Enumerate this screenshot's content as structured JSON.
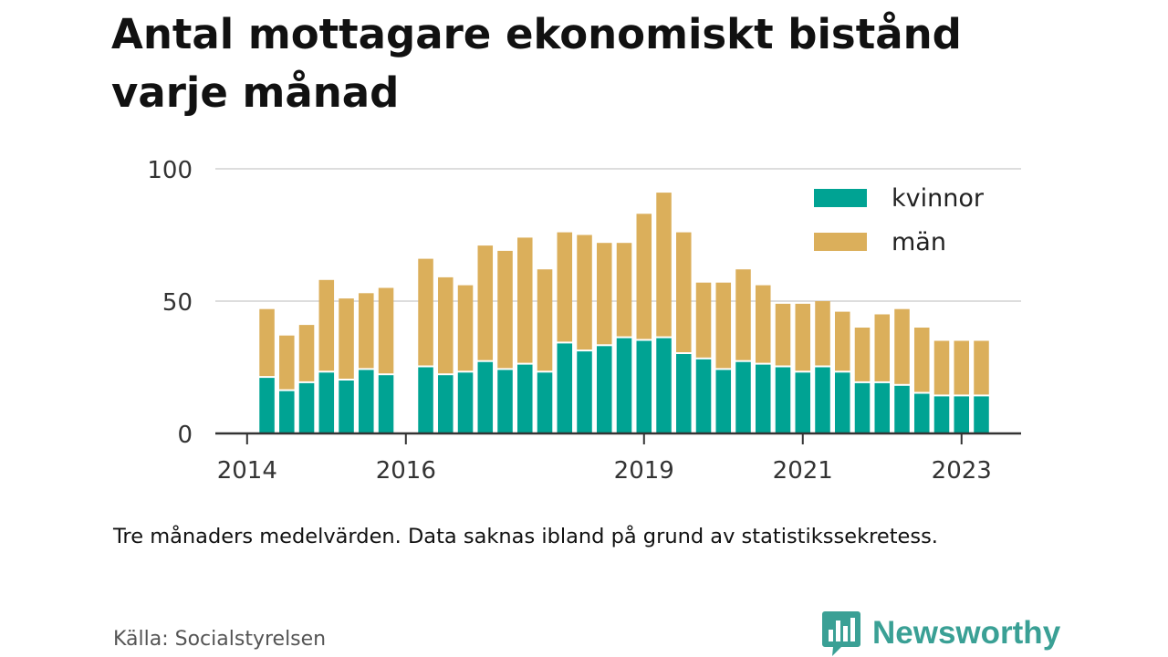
{
  "title": "Antal mottagare ekonomiskt bistånd varje månad",
  "caption": "Tre månaders medelvärden. Data saknas ibland på grund av statistikssekretess.",
  "source": "Källa: Socialstyrelsen",
  "brand": {
    "name": "Newsworthy",
    "icon": "newsworthy-logo-icon"
  },
  "colors": {
    "kvinnor": "#00a393",
    "man": "#dbaf5b",
    "grid": "#dddddd",
    "axis": "#333333"
  },
  "chart_data": {
    "type": "bar",
    "stacked": true,
    "x_unit": "year (quarterly bars)",
    "x": [
      2014.25,
      2014.5,
      2014.75,
      2015.0,
      2015.25,
      2015.5,
      2015.75,
      2016.25,
      2016.5,
      2016.75,
      2017.0,
      2017.25,
      2017.5,
      2017.75,
      2018.0,
      2018.25,
      2018.5,
      2018.75,
      2019.0,
      2019.25,
      2019.5,
      2019.75,
      2020.0,
      2020.25,
      2020.5,
      2020.75,
      2021.0,
      2021.25,
      2021.5,
      2021.75,
      2022.0,
      2022.25,
      2022.5,
      2022.75,
      2023.0,
      2023.25
    ],
    "series": [
      {
        "name": "kvinnor",
        "values": [
          21,
          16,
          19,
          23,
          20,
          24,
          22,
          25,
          22,
          23,
          27,
          24,
          26,
          23,
          34,
          31,
          33,
          36,
          35,
          36,
          30,
          28,
          24,
          27,
          26,
          25,
          23,
          25,
          23,
          19,
          19,
          18,
          15,
          14,
          14,
          14
        ]
      },
      {
        "name": "män",
        "values": [
          26,
          21,
          22,
          35,
          31,
          29,
          33,
          41,
          37,
          33,
          44,
          45,
          48,
          39,
          42,
          44,
          39,
          36,
          48,
          55,
          46,
          29,
          33,
          35,
          30,
          24,
          26,
          25,
          23,
          21,
          26,
          29,
          25,
          21,
          21,
          21
        ]
      }
    ],
    "xticks": [
      "2014",
      "2016",
      "2019",
      "2021",
      "2023"
    ],
    "xtick_values": [
      2014,
      2016,
      2019,
      2021,
      2023
    ],
    "yticks": [
      "0",
      "50",
      "100"
    ],
    "ytick_values": [
      0,
      50,
      100
    ],
    "ylim": [
      0,
      100
    ],
    "xlim": [
      2013.6,
      2023.75
    ],
    "legend": {
      "position": "top-right",
      "entries": [
        "kvinnor",
        "män"
      ]
    },
    "grid": true
  }
}
